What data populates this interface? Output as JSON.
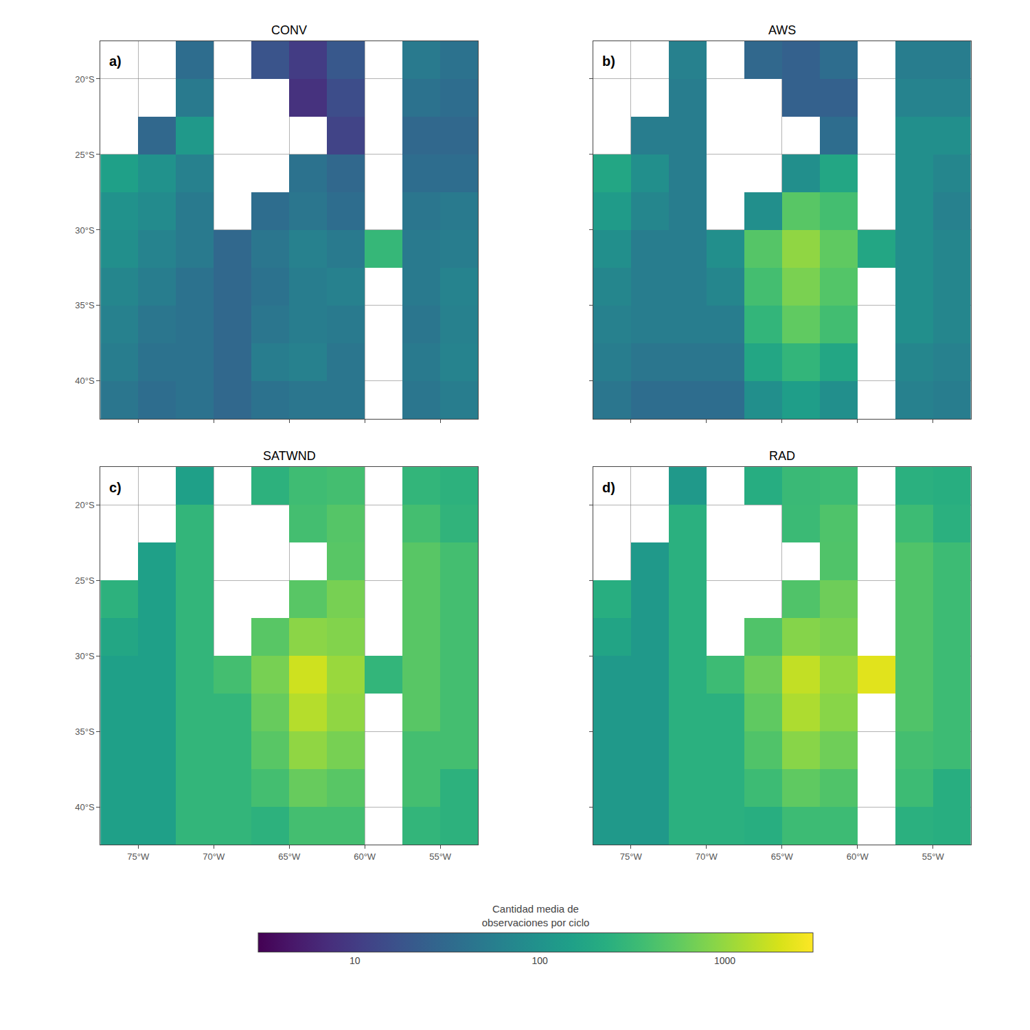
{
  "chart_data": [
    {
      "type": "heatmap",
      "title": "CONV",
      "annotation": "a)",
      "tick_labels": "y",
      "grid": true,
      "log": true,
      "x_edges": [
        -77.5,
        -75,
        -72.5,
        -70,
        -67.5,
        -65,
        -62.5,
        -60,
        -57.5,
        -55,
        -52.5
      ],
      "y_edges": [
        -17.5,
        -20,
        -22.5,
        -25,
        -27.5,
        -30,
        -32.5,
        -35,
        -37.5,
        -40,
        -42.5
      ],
      "cells": [
        [
          null,
          null,
          35,
          null,
          18,
          10,
          20,
          null,
          50,
          40
        ],
        [
          null,
          null,
          50,
          null,
          null,
          8,
          15,
          null,
          40,
          35
        ],
        [
          null,
          30,
          120,
          null,
          null,
          null,
          12,
          null,
          30,
          30
        ],
        [
          150,
          100,
          60,
          null,
          null,
          40,
          30,
          null,
          35,
          35
        ],
        [
          100,
          80,
          50,
          null,
          35,
          45,
          35,
          null,
          45,
          50
        ],
        [
          90,
          65,
          50,
          30,
          45,
          60,
          50,
          300,
          50,
          55
        ],
        [
          70,
          55,
          40,
          30,
          40,
          55,
          60,
          null,
          50,
          65
        ],
        [
          60,
          45,
          40,
          30,
          45,
          55,
          50,
          null,
          45,
          60
        ],
        [
          55,
          40,
          40,
          30,
          55,
          60,
          45,
          null,
          50,
          65
        ],
        [
          45,
          35,
          40,
          30,
          40,
          45,
          45,
          null,
          45,
          55
        ]
      ],
      "xlim": [
        -77.5,
        -52.5
      ],
      "ylim": [
        -42.5,
        -17.5
      ],
      "xticks": [
        {
          "value": -75,
          "label": "75°W"
        },
        {
          "value": -70,
          "label": "70°W"
        },
        {
          "value": -65,
          "label": "65°W"
        },
        {
          "value": -60,
          "label": "60°W"
        },
        {
          "value": -55,
          "label": "55°W"
        }
      ],
      "yticks": [
        {
          "value": -20,
          "label": "20°S"
        },
        {
          "value": -25,
          "label": "25°S"
        },
        {
          "value": -30,
          "label": "30°S"
        },
        {
          "value": -35,
          "label": "35°S"
        },
        {
          "value": -40,
          "label": "40°S"
        }
      ],
      "color_range": [
        3,
        3000
      ],
      "color_ticks": [
        10,
        100,
        1000
      ],
      "color_label": [
        "Cantidad media de",
        "observaciones por ciclo"
      ]
    },
    {
      "type": "heatmap",
      "title": "AWS",
      "annotation": "b)",
      "tick_labels": false,
      "grid": true,
      "log": true,
      "x_edges": [
        -77.5,
        -75,
        -72.5,
        -70,
        -67.5,
        -65,
        -62.5,
        -60,
        -57.5,
        -55,
        -52.5
      ],
      "y_edges": [
        -17.5,
        -20,
        -22.5,
        -25,
        -27.5,
        -30,
        -32.5,
        -35,
        -37.5,
        -40,
        -42.5
      ],
      "cells": [
        [
          null,
          null,
          60,
          null,
          30,
          25,
          35,
          null,
          55,
          55
        ],
        [
          null,
          null,
          55,
          null,
          null,
          25,
          25,
          null,
          65,
          65
        ],
        [
          null,
          55,
          55,
          null,
          null,
          null,
          35,
          null,
          90,
          90
        ],
        [
          180,
          90,
          55,
          null,
          null,
          90,
          180,
          null,
          90,
          70
        ],
        [
          130,
          70,
          55,
          null,
          90,
          500,
          380,
          null,
          90,
          60
        ],
        [
          90,
          55,
          55,
          90,
          480,
          950,
          550,
          180,
          90,
          70
        ],
        [
          70,
          55,
          55,
          70,
          380,
          750,
          470,
          null,
          90,
          70
        ],
        [
          60,
          55,
          55,
          55,
          280,
          560,
          370,
          null,
          90,
          70
        ],
        [
          55,
          45,
          45,
          45,
          180,
          280,
          180,
          null,
          70,
          60
        ],
        [
          45,
          35,
          35,
          35,
          90,
          140,
          90,
          null,
          60,
          55
        ]
      ],
      "xlim": [
        -77.5,
        -52.5
      ],
      "ylim": [
        -42.5,
        -17.5
      ],
      "xticks": [
        {
          "value": -75,
          "label": "75°W"
        },
        {
          "value": -70,
          "label": "70°W"
        },
        {
          "value": -65,
          "label": "65°W"
        },
        {
          "value": -60,
          "label": "60°W"
        },
        {
          "value": -55,
          "label": "55°W"
        }
      ],
      "yticks": [
        {
          "value": -20,
          "label": "20°S"
        },
        {
          "value": -25,
          "label": "25°S"
        },
        {
          "value": -30,
          "label": "30°S"
        },
        {
          "value": -35,
          "label": "35°S"
        },
        {
          "value": -40,
          "label": "40°S"
        }
      ],
      "color_range": [
        3,
        3000
      ],
      "color_ticks": [
        10,
        100,
        1000
      ],
      "color_label": [
        "Cantidad media de",
        "observaciones por ciclo"
      ]
    },
    {
      "type": "heatmap",
      "title": "SATWND",
      "annotation": "c)",
      "tick_labels": true,
      "grid": true,
      "log": true,
      "x_edges": [
        -77.5,
        -75,
        -72.5,
        -70,
        -67.5,
        -65,
        -62.5,
        -60,
        -57.5,
        -55,
        -52.5
      ],
      "y_edges": [
        -17.5,
        -20,
        -22.5,
        -25,
        -27.5,
        -30,
        -32.5,
        -35,
        -37.5,
        -40,
        -42.5
      ],
      "cells": [
        [
          null,
          null,
          150,
          null,
          250,
          350,
          380,
          null,
          280,
          250
        ],
        [
          null,
          null,
          280,
          null,
          null,
          380,
          480,
          null,
          380,
          270
        ],
        [
          null,
          150,
          280,
          null,
          null,
          null,
          500,
          null,
          500,
          380
        ],
        [
          250,
          150,
          280,
          null,
          null,
          500,
          720,
          null,
          500,
          380
        ],
        [
          180,
          150,
          280,
          null,
          500,
          900,
          820,
          null,
          500,
          380
        ],
        [
          150,
          150,
          280,
          380,
          720,
          1800,
          1050,
          280,
          500,
          380
        ],
        [
          150,
          150,
          280,
          280,
          600,
          1400,
          950,
          null,
          500,
          380
        ],
        [
          150,
          150,
          280,
          280,
          500,
          950,
          720,
          null,
          380,
          380
        ],
        [
          150,
          150,
          280,
          280,
          380,
          600,
          500,
          null,
          380,
          250
        ],
        [
          150,
          150,
          280,
          280,
          250,
          380,
          380,
          null,
          280,
          250
        ]
      ],
      "xlim": [
        -77.5,
        -52.5
      ],
      "ylim": [
        -42.5,
        -17.5
      ],
      "xticks": [
        {
          "value": -75,
          "label": "75°W"
        },
        {
          "value": -70,
          "label": "70°W"
        },
        {
          "value": -65,
          "label": "65°W"
        },
        {
          "value": -60,
          "label": "60°W"
        },
        {
          "value": -55,
          "label": "55°W"
        }
      ],
      "yticks": [
        {
          "value": -20,
          "label": "20°S"
        },
        {
          "value": -25,
          "label": "25°S"
        },
        {
          "value": -30,
          "label": "30°S"
        },
        {
          "value": -35,
          "label": "35°S"
        },
        {
          "value": -40,
          "label": "40°S"
        }
      ],
      "color_range": [
        3,
        3000
      ],
      "color_ticks": [
        10,
        100,
        1000
      ],
      "color_label": [
        "Cantidad media de",
        "observaciones por ciclo"
      ]
    },
    {
      "type": "heatmap",
      "title": "RAD",
      "annotation": "d)",
      "tick_labels": "x",
      "grid": true,
      "log": true,
      "x_edges": [
        -77.5,
        -75,
        -72.5,
        -70,
        -67.5,
        -65,
        -62.5,
        -60,
        -57.5,
        -55,
        -52.5
      ],
      "y_edges": [
        -17.5,
        -20,
        -22.5,
        -25,
        -27.5,
        -30,
        -32.5,
        -35,
        -37.5,
        -40,
        -42.5
      ],
      "cells": [
        [
          null,
          null,
          120,
          null,
          220,
          320,
          340,
          null,
          240,
          230
        ],
        [
          null,
          null,
          240,
          null,
          null,
          330,
          440,
          null,
          340,
          240
        ],
        [
          null,
          120,
          240,
          null,
          null,
          null,
          450,
          null,
          450,
          340
        ],
        [
          230,
          120,
          240,
          null,
          null,
          450,
          650,
          null,
          450,
          340
        ],
        [
          170,
          120,
          240,
          null,
          450,
          850,
          760,
          null,
          450,
          340
        ],
        [
          120,
          120,
          240,
          340,
          650,
          1600,
          980,
          2200,
          450,
          340
        ],
        [
          120,
          120,
          240,
          240,
          550,
          1300,
          880,
          null,
          450,
          340
        ],
        [
          120,
          120,
          240,
          240,
          450,
          880,
          660,
          null,
          380,
          340
        ],
        [
          120,
          120,
          240,
          240,
          340,
          550,
          450,
          null,
          340,
          230
        ],
        [
          120,
          120,
          240,
          240,
          230,
          340,
          340,
          null,
          240,
          230
        ]
      ],
      "xlim": [
        -77.5,
        -52.5
      ],
      "ylim": [
        -42.5,
        -17.5
      ],
      "xticks": [
        {
          "value": -75,
          "label": "75°W"
        },
        {
          "value": -70,
          "label": "70°W"
        },
        {
          "value": -65,
          "label": "65°W"
        },
        {
          "value": -60,
          "label": "60°W"
        },
        {
          "value": -55,
          "label": "55°W"
        }
      ],
      "yticks": [
        {
          "value": -20,
          "label": "20°S"
        },
        {
          "value": -25,
          "label": "25°S"
        },
        {
          "value": -30,
          "label": "30°S"
        },
        {
          "value": -35,
          "label": "35°S"
        },
        {
          "value": -40,
          "label": "40°S"
        }
      ],
      "color_range": [
        3,
        3000
      ],
      "color_ticks": [
        10,
        100,
        1000
      ],
      "color_label": [
        "Cantidad media de",
        "observaciones por ciclo"
      ]
    }
  ]
}
